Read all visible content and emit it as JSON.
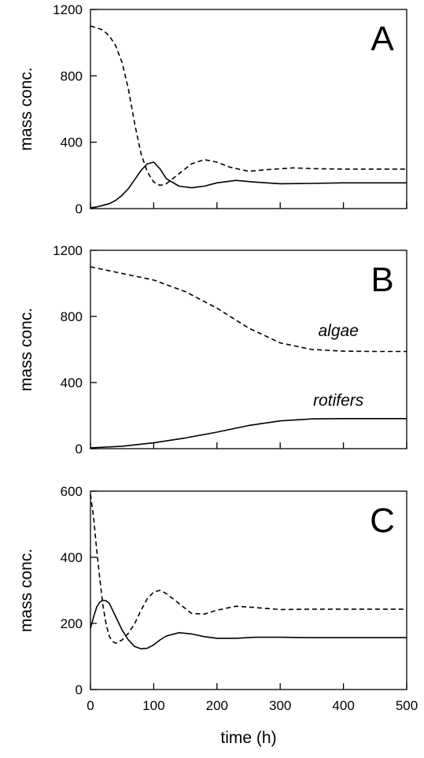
{
  "chart_data": [
    {
      "type": "line",
      "panel_label": "A",
      "xlim": [
        0,
        500
      ],
      "ylim": [
        0,
        1200
      ],
      "yticks": [
        "0",
        "400",
        "800",
        "1200"
      ],
      "xticks": [
        "",
        "",
        "",
        "",
        "",
        ""
      ],
      "ylabel": "mass conc.",
      "xlabel": "",
      "grid": false,
      "series": [
        {
          "style": "dashed",
          "x": [
            0,
            10,
            20,
            30,
            40,
            50,
            60,
            70,
            80,
            90,
            100,
            110,
            120,
            140,
            160,
            180,
            200,
            220,
            250,
            280,
            320,
            360,
            400,
            450,
            500
          ],
          "y": [
            1100,
            1090,
            1075,
            1040,
            980,
            880,
            720,
            510,
            330,
            220,
            160,
            140,
            150,
            210,
            270,
            295,
            280,
            250,
            225,
            235,
            245,
            240,
            238,
            238,
            238
          ]
        },
        {
          "style": "solid",
          "x": [
            0,
            10,
            20,
            30,
            40,
            50,
            60,
            70,
            80,
            90,
            100,
            110,
            120,
            140,
            160,
            180,
            200,
            230,
            260,
            300,
            350,
            400,
            450,
            500
          ],
          "y": [
            5,
            10,
            20,
            30,
            50,
            80,
            120,
            175,
            230,
            270,
            280,
            240,
            180,
            135,
            125,
            135,
            155,
            170,
            160,
            150,
            152,
            155,
            155,
            155
          ]
        }
      ]
    },
    {
      "type": "line",
      "panel_label": "B",
      "xlim": [
        0,
        500
      ],
      "ylim": [
        0,
        1200
      ],
      "yticks": [
        "0",
        "400",
        "800",
        "1200"
      ],
      "xticks": [
        "",
        "",
        "",
        "",
        "",
        ""
      ],
      "ylabel": "mass conc.",
      "xlabel": "",
      "grid": false,
      "annotations": [
        "algae",
        "rotifers"
      ],
      "series": [
        {
          "name": "algae",
          "style": "dashed",
          "x": [
            0,
            50,
            100,
            150,
            200,
            250,
            300,
            350,
            400,
            450,
            500
          ],
          "y": [
            1100,
            1060,
            1020,
            950,
            850,
            730,
            640,
            600,
            590,
            588,
            588
          ]
        },
        {
          "name": "rotifers",
          "style": "solid",
          "x": [
            0,
            50,
            100,
            150,
            200,
            250,
            300,
            350,
            400,
            450,
            500
          ],
          "y": [
            5,
            15,
            35,
            65,
            100,
            140,
            168,
            180,
            182,
            182,
            182
          ]
        }
      ]
    },
    {
      "type": "line",
      "panel_label": "C",
      "xlim": [
        0,
        500
      ],
      "ylim": [
        0,
        600
      ],
      "yticks": [
        "0",
        "200",
        "400",
        "600"
      ],
      "xticks": [
        "0",
        "100",
        "200",
        "300",
        "400",
        "500"
      ],
      "ylabel": "mass conc.",
      "xlabel": "time (h)",
      "grid": false,
      "series": [
        {
          "style": "dashed",
          "x": [
            0,
            5,
            10,
            15,
            20,
            25,
            30,
            35,
            40,
            50,
            60,
            70,
            80,
            90,
            100,
            110,
            120,
            140,
            160,
            180,
            200,
            230,
            260,
            300,
            350,
            400,
            450,
            500
          ],
          "y": [
            590,
            520,
            420,
            330,
            250,
            195,
            160,
            145,
            140,
            150,
            170,
            200,
            240,
            275,
            295,
            300,
            290,
            260,
            230,
            228,
            240,
            252,
            248,
            242,
            243,
            243,
            243,
            243
          ]
        },
        {
          "style": "solid",
          "x": [
            0,
            5,
            10,
            15,
            20,
            25,
            30,
            40,
            50,
            60,
            70,
            80,
            90,
            100,
            110,
            120,
            140,
            160,
            180,
            200,
            230,
            260,
            300,
            350,
            400,
            450,
            500
          ],
          "y": [
            185,
            220,
            250,
            265,
            270,
            268,
            260,
            220,
            180,
            150,
            130,
            123,
            125,
            135,
            150,
            162,
            172,
            168,
            160,
            155,
            155,
            158,
            158,
            157,
            157,
            157,
            157
          ]
        }
      ]
    }
  ]
}
